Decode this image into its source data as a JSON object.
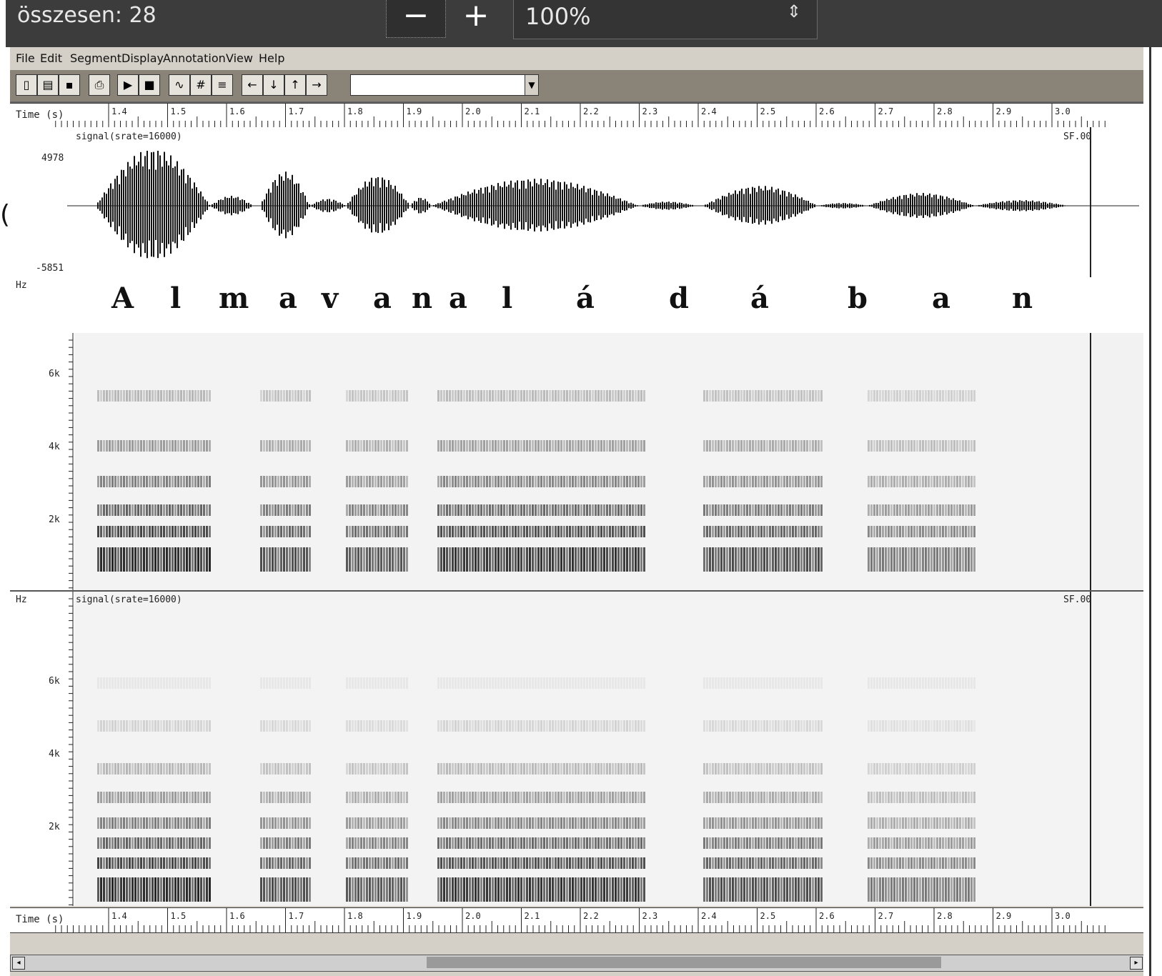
{
  "topbar": {
    "count_label": "összesen: 28",
    "zoom_minus": "−",
    "zoom_plus": "+",
    "zoom_value": "100%",
    "zoom_spin": "⇕"
  },
  "menubar": {
    "items": [
      "File",
      "Edit",
      "Segment",
      "Display",
      "Annotation",
      "View",
      "Help"
    ]
  },
  "toolbar": {
    "new_label": "▯",
    "open_label": "▤",
    "save_label": "▪",
    "print_label": "⎙",
    "play_label": "▶",
    "stop_label": "■",
    "wave_label": "∿",
    "grid_label": "#",
    "list_label": "≡",
    "left_label": "←",
    "down_label": "↓",
    "up_label": "↑",
    "right_label": "→",
    "combo_value": "",
    "combo_arrow": "▼"
  },
  "ruler": {
    "label": "Time (s)",
    "ticks": [
      "1.4",
      "1.5",
      "1.6",
      "1.7",
      "1.8",
      "1.9",
      "2.0",
      "2.1",
      "2.2",
      "2.3",
      "2.4",
      "2.5",
      "2.6",
      "2.7",
      "2.8",
      "2.9",
      "3.0"
    ]
  },
  "waveform": {
    "header": "signal(srate=16000)",
    "max_label": "4978",
    "min_label": "-5851",
    "right_label": "SF.00"
  },
  "letters": [
    "A",
    "l",
    "m",
    "a",
    "v",
    "a",
    "n",
    "a",
    "l",
    "á",
    "d",
    "á",
    "b",
    "a",
    "n"
  ],
  "spectrogram_1": {
    "corner": "Hz",
    "y_ticks": [
      "6k",
      "4k",
      "2k"
    ]
  },
  "spectrogram_2": {
    "corner": "Hz",
    "header": "signal(srate=16000)",
    "right_label": "SF.00",
    "y_ticks": [
      "6k",
      "4k",
      "2k"
    ]
  },
  "left_mark": "("
}
